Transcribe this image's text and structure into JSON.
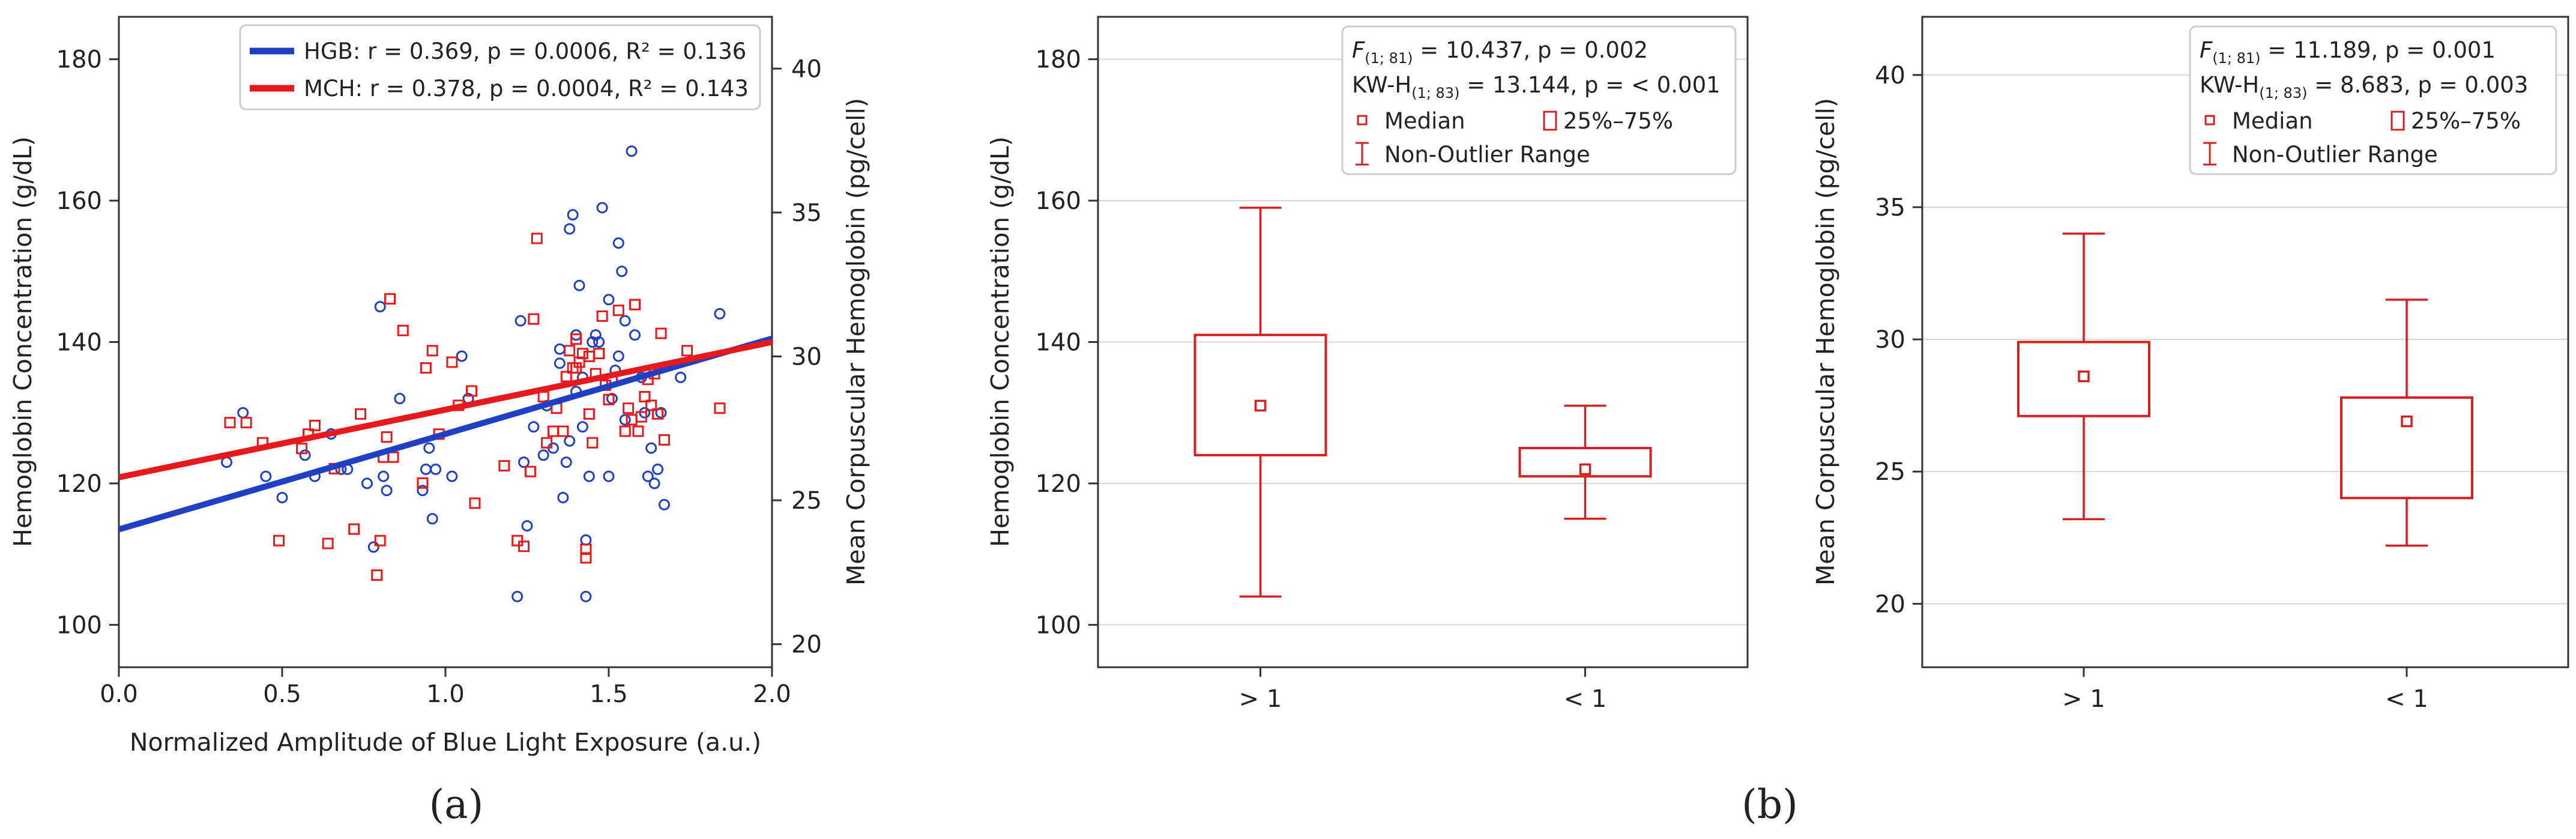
{
  "colors": {
    "hgb": "#1f3fc4",
    "mch": "#e8191c",
    "box": "#d42020",
    "grid": "#d8d8d8",
    "frame": "#333333"
  },
  "panel_labels": {
    "a": "(a)",
    "b": "(b)"
  },
  "chart_data": [
    {
      "type": "scatter",
      "xlabel": "Normalized Amplitude of Blue Light Exposure (a.u.)",
      "ylabel_left": "Hemoglobin Concentration (g/dL)",
      "ylabel_right": "Mean Corpuscular Hemoglobin (pg/cell)",
      "xlim": [
        0.0,
        2.0
      ],
      "ylim_left": [
        94,
        186
      ],
      "ylim_right": [
        19.2,
        41.8
      ],
      "xticks": [
        "0.0",
        "0.5",
        "1.0",
        "1.5",
        "2.0"
      ],
      "yticks_left": [
        "100",
        "120",
        "140",
        "160",
        "180"
      ],
      "yticks_right": [
        "20",
        "25",
        "30",
        "35",
        "40"
      ],
      "grid": false,
      "legend_position": "top-right",
      "legend": [
        {
          "series": "HGB",
          "stats": "r = 0.369, p = 0.0006, R² = 0.136"
        },
        {
          "series": "MCH",
          "stats": "r = 0.378, p = 0.0004, R² = 0.143"
        }
      ],
      "series": [
        {
          "name": "HGB",
          "axis": "left",
          "marker": "circle",
          "fit": {
            "x": [
              0.0,
              2.0
            ],
            "y": [
              113.5,
              140.5
            ]
          },
          "points": [
            [
              0.33,
              123
            ],
            [
              0.38,
              130
            ],
            [
              0.45,
              121
            ],
            [
              0.5,
              118
            ],
            [
              0.57,
              124
            ],
            [
              0.6,
              121
            ],
            [
              0.65,
              127
            ],
            [
              0.68,
              122
            ],
            [
              0.7,
              122
            ],
            [
              0.76,
              120
            ],
            [
              0.78,
              111
            ],
            [
              0.8,
              145
            ],
            [
              0.81,
              121
            ],
            [
              0.82,
              119
            ],
            [
              0.86,
              132
            ],
            [
              0.93,
              119
            ],
            [
              0.94,
              122
            ],
            [
              0.95,
              125
            ],
            [
              0.96,
              115
            ],
            [
              0.97,
              122
            ],
            [
              1.02,
              121
            ],
            [
              1.05,
              138
            ],
            [
              1.07,
              132
            ],
            [
              1.22,
              104
            ],
            [
              1.23,
              143
            ],
            [
              1.24,
              123
            ],
            [
              1.25,
              114
            ],
            [
              1.27,
              128
            ],
            [
              1.3,
              124
            ],
            [
              1.31,
              131
            ],
            [
              1.33,
              125
            ],
            [
              1.35,
              137
            ],
            [
              1.35,
              139
            ],
            [
              1.36,
              118
            ],
            [
              1.37,
              123
            ],
            [
              1.38,
              126
            ],
            [
              1.38,
              156
            ],
            [
              1.39,
              158
            ],
            [
              1.4,
              141
            ],
            [
              1.4,
              133
            ],
            [
              1.41,
              148
            ],
            [
              1.42,
              135
            ],
            [
              1.42,
              128
            ],
            [
              1.43,
              104
            ],
            [
              1.43,
              112
            ],
            [
              1.44,
              121
            ],
            [
              1.45,
              140
            ],
            [
              1.46,
              141
            ],
            [
              1.47,
              140
            ],
            [
              1.48,
              159
            ],
            [
              1.5,
              121
            ],
            [
              1.5,
              146
            ],
            [
              1.51,
              132
            ],
            [
              1.52,
              136
            ],
            [
              1.53,
              138
            ],
            [
              1.53,
              154
            ],
            [
              1.54,
              150
            ],
            [
              1.55,
              143
            ],
            [
              1.55,
              129
            ],
            [
              1.57,
              167
            ],
            [
              1.58,
              141
            ],
            [
              1.6,
              135
            ],
            [
              1.61,
              130
            ],
            [
              1.62,
              121
            ],
            [
              1.63,
              125
            ],
            [
              1.64,
              120
            ],
            [
              1.65,
              122
            ],
            [
              1.66,
              130
            ],
            [
              1.67,
              117
            ],
            [
              1.72,
              135
            ],
            [
              1.84,
              144
            ]
          ]
        },
        {
          "name": "MCH",
          "axis": "right",
          "marker": "square",
          "fit": {
            "x": [
              0.0,
              2.0
            ],
            "y": [
              25.8,
              30.5
            ]
          },
          "points": [
            [
              0.34,
              27.7
            ],
            [
              0.39,
              27.7
            ],
            [
              0.44,
              27.0
            ],
            [
              0.49,
              23.6
            ],
            [
              0.56,
              26.8
            ],
            [
              0.58,
              27.3
            ],
            [
              0.6,
              27.6
            ],
            [
              0.64,
              23.5
            ],
            [
              0.66,
              26.1
            ],
            [
              0.72,
              24.0
            ],
            [
              0.74,
              28.0
            ],
            [
              0.79,
              22.4
            ],
            [
              0.8,
              23.6
            ],
            [
              0.81,
              26.5
            ],
            [
              0.82,
              27.2
            ],
            [
              0.83,
              32.0
            ],
            [
              0.84,
              26.5
            ],
            [
              0.87,
              30.9
            ],
            [
              0.93,
              25.6
            ],
            [
              0.94,
              29.6
            ],
            [
              0.96,
              30.2
            ],
            [
              0.98,
              27.3
            ],
            [
              1.02,
              29.8
            ],
            [
              1.04,
              28.3
            ],
            [
              1.08,
              28.8
            ],
            [
              1.09,
              24.9
            ],
            [
              1.18,
              26.2
            ],
            [
              1.22,
              23.6
            ],
            [
              1.24,
              23.4
            ],
            [
              1.26,
              26.0
            ],
            [
              1.27,
              31.3
            ],
            [
              1.28,
              34.1
            ],
            [
              1.3,
              28.6
            ],
            [
              1.31,
              27.0
            ],
            [
              1.33,
              27.4
            ],
            [
              1.34,
              28.2
            ],
            [
              1.36,
              27.4
            ],
            [
              1.37,
              29.3
            ],
            [
              1.38,
              30.2
            ],
            [
              1.39,
              29.6
            ],
            [
              1.4,
              30.6
            ],
            [
              1.4,
              29.6
            ],
            [
              1.41,
              29.8
            ],
            [
              1.42,
              30.1
            ],
            [
              1.43,
              23.3
            ],
            [
              1.43,
              23.0
            ],
            [
              1.44,
              30.0
            ],
            [
              1.44,
              28.0
            ],
            [
              1.45,
              27.0
            ],
            [
              1.46,
              29.4
            ],
            [
              1.47,
              30.1
            ],
            [
              1.48,
              31.4
            ],
            [
              1.49,
              29.0
            ],
            [
              1.5,
              28.5
            ],
            [
              1.51,
              29.2
            ],
            [
              1.53,
              31.6
            ],
            [
              1.55,
              27.4
            ],
            [
              1.56,
              28.2
            ],
            [
              1.57,
              27.8
            ],
            [
              1.58,
              31.8
            ],
            [
              1.59,
              27.4
            ],
            [
              1.6,
              27.9
            ],
            [
              1.61,
              28.6
            ],
            [
              1.62,
              29.2
            ],
            [
              1.63,
              28.3
            ],
            [
              1.64,
              29.4
            ],
            [
              1.65,
              28.0
            ],
            [
              1.66,
              30.8
            ],
            [
              1.67,
              27.1
            ],
            [
              1.74,
              30.2
            ],
            [
              1.84,
              28.2
            ]
          ]
        }
      ]
    },
    {
      "type": "box",
      "categories": [
        "> 1",
        "< 1"
      ],
      "ylabel": "Hemoglobin Concentration (g/dL)",
      "ylim": [
        94,
        186
      ],
      "yticks": [
        "100",
        "120",
        "140",
        "160",
        "180"
      ],
      "grid": true,
      "legend_position": "top-right",
      "stats": [
        {
          "pre": "F",
          "sub": "(1; 81)",
          "post": " = 10.437, p = 0.002"
        },
        {
          "pre": "KW-H",
          "sub": "(1; 83)",
          "post": " = 13.144, p = < 0.001"
        }
      ],
      "legend": {
        "median": "Median",
        "iqr": "25%–75%",
        "range": "Non-Outlier Range"
      },
      "boxes": [
        {
          "category": "> 1",
          "min": 104,
          "q1": 124,
          "median": 131,
          "q3": 141,
          "max": 159
        },
        {
          "category": "< 1",
          "min": 115,
          "q1": 121,
          "median": 122,
          "q3": 125,
          "max": 131
        }
      ]
    },
    {
      "type": "box",
      "categories": [
        "> 1",
        "< 1"
      ],
      "ylabel": "Mean Corpuscular Hemoglobin (pg/cell)",
      "ylim": [
        17.6,
        42.2
      ],
      "yticks": [
        "20",
        "25",
        "30",
        "35",
        "40"
      ],
      "grid": true,
      "legend_position": "top-right",
      "stats": [
        {
          "pre": "F",
          "sub": "(1; 81)",
          "post": " = 11.189, p = 0.001"
        },
        {
          "pre": "KW-H",
          "sub": "(1; 83)",
          "post": " = 8.683, p = 0.003"
        }
      ],
      "legend": {
        "median": "Median",
        "iqr": "25%–75%",
        "range": "Non-Outlier Range"
      },
      "boxes": [
        {
          "category": "> 1",
          "min": 23.2,
          "q1": 27.1,
          "median": 28.6,
          "q3": 29.9,
          "max": 34.0
        },
        {
          "category": "< 1",
          "min": 22.2,
          "q1": 24.0,
          "median": 26.9,
          "q3": 27.8,
          "max": 31.5
        }
      ]
    }
  ]
}
